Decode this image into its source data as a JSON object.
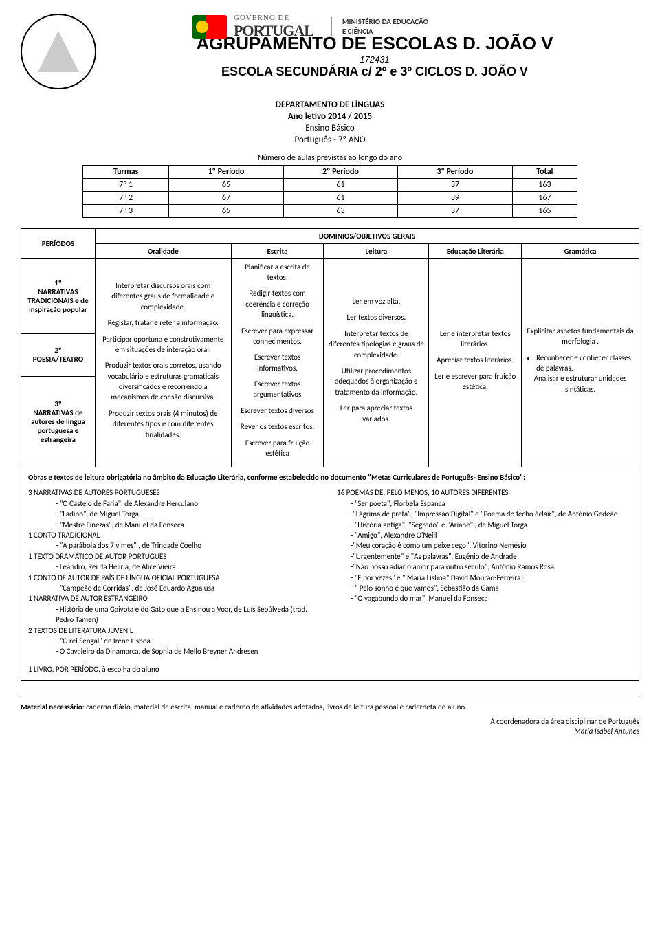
{
  "header": {
    "gov_line1": "GOVERNO DE",
    "gov_line2": "PORTUGAL",
    "ministry_line1": "MINISTÉRIO DA EDUCAÇÃO",
    "ministry_line2": "E CIÊNCIA",
    "school_line1": "AGRUPAMENTO DE ESCOLAS D. JOÃO V",
    "school_code": "172431",
    "school_line3": "ESCOLA SECUNDÁRIA c/ 2º e 3º CICLOS D. JOÃO V"
  },
  "dept": {
    "title": "DEPARTAMENTO DE LÍNGUAS",
    "year": "Ano letivo 2014 / 2015",
    "level": "Ensino Básico",
    "subject": "Português - 7º ANO"
  },
  "classes_caption": "Número de aulas previstas ao longo do ano",
  "classes_table": {
    "headers": [
      "Turmas",
      "1º Período",
      "2º Período",
      "3º Período",
      "Total"
    ],
    "rows": [
      [
        "7º 1",
        "65",
        "61",
        "37",
        "163"
      ],
      [
        "7º 2",
        "67",
        "61",
        "39",
        "167"
      ],
      [
        "7º 3",
        "65",
        "63",
        "37",
        "165"
      ]
    ]
  },
  "domains_table": {
    "periods_header": "PERÍODOS",
    "main_header": "DOMINIOS/OBJETIVOS GERAIS",
    "sub_headers": [
      "Oralidade",
      "Escrita",
      "Leitura",
      "Educação Literária",
      "Gramática"
    ],
    "period_labels": [
      "1º\nNARRATIVAS TRADICIONAIS e de inspiração popular",
      "2º\nPOESIA/TEATRO",
      "3º\nNARRATIVAS de autores de língua portuguesa e estrangeira"
    ],
    "oralidade": [
      "Interpretar discursos orais com diferentes graus de formalidade e complexidade.",
      "Registar, tratar e reter a informação.",
      "Participar oportuna e construtivamente em situações de interação oral.",
      "Produzir textos orais corretos, usando vocabulário e estruturas gramaticais diversificados e recorrendo a mecanismos de coesão discursiva.",
      "Produzir textos orais (4 minutos) de diferentes tipos e com diferentes finalidades."
    ],
    "escrita": [
      "Planificar a escrita de textos.",
      "Redigir textos com coerência e correção linguística.",
      "Escrever para expressar conhecimentos.",
      "Escrever textos informativos.",
      "Escrever textos argumentativos",
      "Escrever textos diversos",
      "Rever os textos escritos.",
      "Escrever para fruição estética"
    ],
    "leitura": [
      "Ler em voz alta.",
      "Ler textos diversos.",
      "Interpretar textos de diferentes tipologias e graus de complexidade.",
      "Utilizar procedimentos adequados à organização e tratamento da informação.",
      "Ler para apreciar textos variados."
    ],
    "educ_lit": [
      "Ler e interpretar textos literários.",
      "Apreciar textos literários.",
      "Ler e escrever para fruição estética."
    ],
    "gramatica": [
      "Explicitar aspetos fundamentais da morfologia .",
      "Reconhecer e conhecer classes de palavras.",
      "Analisar e estruturar unidades sintáticas."
    ]
  },
  "obras": {
    "intro": "Obras e textos de leitura obrigatória no âmbito da Educação Literária, conforme estabelecido no documento \"Metas Curriculares de Português- Ensino Básico\":",
    "left": {
      "s1_head": "3 NARRATIVAS DE AUTORES PORTUGUESES",
      "s1_items": [
        "- \"O Castelo de Faria\", de Alexandre Herculano",
        "- \"Ladino\", de Miguel Torga",
        "- \"Mestre Finezas\", de Manuel da Fonseca"
      ],
      "s2_head": "1 CONTO TRADICIONAL",
      "s2_items": [
        "- \"A parábola dos 7 vimes\" , de Trindade Coelho"
      ],
      "s3_head": "1 TEXTO DRAMÁTICO DE AUTOR PORTUGUÊS",
      "s3_items": [
        "- Leandro, Rei da Helíria, de Alice Vieira"
      ],
      "s4_head": "1 CONTO DE AUTOR DE PAÍS DE LÍNGUA OFICIAL PORTUGUESA",
      "s4_items": [
        "- \"Campeão de Corridas\", de José Eduardo Agualusa"
      ],
      "s5_head": "1 NARRATIVA DE AUTOR ESTRANGEIRO",
      "s5_items": [
        "- História de uma Gaivota e do Gato que a Ensinou a Voar, de Luís Sepúlveda (trad. Pedro Tamen)"
      ],
      "s6_head": "2 TEXTOS DE LITERATURA JUVENIL",
      "s6_items": [
        "- \"O rei Sengal\" de Irene Lisboa",
        "- O Cavaleiro da Dinamarca, de Sophia de Mello Breyner Andresen"
      ],
      "s7_head": "1 LIVRO, POR PERÍODO, à escolha do aluno"
    },
    "right": {
      "head": "16 POEMAS DE, PELO MENOS, 10 AUTORES DIFERENTES",
      "items": [
        "- \"Ser poeta\", Florbela Espanca",
        "-\"Lágrima de preta\", \"Impressão Digital\" e \"Poema do fecho éclair\", de António Gedeão",
        "- \"História antiga\", \"Segredo\" e \"Ariane\" , de Miguel Torga",
        "- \"Amigo\", Alexandre O'Neill",
        "-\"Meu coração é como um peixe cego\", Vitorino Nemésio",
        "-\"Urgentemente\" e \"As palavras\", Eugénio de Andrade",
        "-\"Não posso adiar o amor para outro século\", António Ramos Rosa",
        "- \"E por vezes\" e \" Maria Lisboa\" David Mourão-Ferreira :",
        "- \" Pelo sonho é que vamos\", Sebastião da Gama",
        "- \"O vagabundo do mar\", Manuel da Fonseca"
      ]
    }
  },
  "material": {
    "label": "Material necessário",
    "text": ": caderno diário, material de escrita, manual e caderno de atividades adotados, livros de leitura pessoal e caderneta do aluno."
  },
  "signature": {
    "role": "A coordenadora da área disciplinar de Português",
    "name": "Maria Isabel Antunes"
  }
}
